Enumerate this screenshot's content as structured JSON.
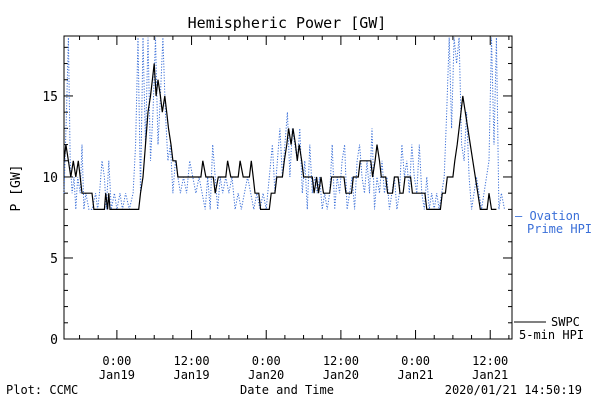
{
  "chart_data": {
    "type": "line",
    "title": "Hemispheric Power [GW]",
    "xlabel": "Date and Time",
    "ylabel": "P [GW]",
    "ylim": [
      0,
      18.7
    ],
    "y_ticks": [
      0,
      5,
      10,
      15
    ],
    "x_range_hours": [
      -8.5,
      63.5
    ],
    "x_ticks": [
      {
        "hour": 0,
        "time": "0:00",
        "date": "Jan19"
      },
      {
        "hour": 12,
        "time": "12:00",
        "date": "Jan19"
      },
      {
        "hour": 24,
        "time": "0:00",
        "date": "Jan20"
      },
      {
        "hour": 36,
        "time": "12:00",
        "date": "Jan20"
      },
      {
        "hour": 48,
        "time": "0:00",
        "date": "Jan21"
      },
      {
        "hour": 60,
        "time": "12:00",
        "date": "Jan21"
      }
    ],
    "legend_placement": "right",
    "series": [
      {
        "name": "SWPC 5-min HPI",
        "color": "#000000",
        "style": "solid",
        "points": [
          [
            -8.5,
            11
          ],
          [
            -8.2,
            12
          ],
          [
            -7.8,
            11
          ],
          [
            -7.4,
            10
          ],
          [
            -7,
            11
          ],
          [
            -6.6,
            10
          ],
          [
            -6.2,
            11
          ],
          [
            -5.9,
            10
          ],
          [
            -5.6,
            9
          ],
          [
            -4,
            9
          ],
          [
            -3.7,
            8
          ],
          [
            -2,
            8
          ],
          [
            -1.8,
            9
          ],
          [
            -1.5,
            8
          ],
          [
            -1.3,
            9
          ],
          [
            -1.1,
            8
          ],
          [
            3.5,
            8
          ],
          [
            3.8,
            9
          ],
          [
            4.2,
            10
          ],
          [
            4.6,
            12
          ],
          [
            5,
            14
          ],
          [
            5.4,
            15
          ],
          [
            5.7,
            16
          ],
          [
            6,
            17
          ],
          [
            6.3,
            15
          ],
          [
            6.6,
            16
          ],
          [
            7,
            15
          ],
          [
            7.3,
            14
          ],
          [
            7.7,
            15
          ],
          [
            8,
            14
          ],
          [
            8.3,
            13
          ],
          [
            8.7,
            12
          ],
          [
            9,
            11
          ],
          [
            9.5,
            11
          ],
          [
            9.8,
            10
          ],
          [
            13.5,
            10
          ],
          [
            13.8,
            11
          ],
          [
            14.3,
            10
          ],
          [
            15.5,
            10
          ],
          [
            15.8,
            9
          ],
          [
            16.3,
            10
          ],
          [
            17.5,
            10
          ],
          [
            17.8,
            11
          ],
          [
            18.3,
            10
          ],
          [
            19.5,
            10
          ],
          [
            19.8,
            11
          ],
          [
            20.3,
            10
          ],
          [
            21.3,
            10
          ],
          [
            21.6,
            11
          ],
          [
            21.9,
            10
          ],
          [
            22.2,
            9
          ],
          [
            22.8,
            9
          ],
          [
            23.1,
            8
          ],
          [
            24.5,
            8
          ],
          [
            24.8,
            9
          ],
          [
            25.4,
            9
          ],
          [
            25.7,
            10
          ],
          [
            26.6,
            10
          ],
          [
            26.9,
            11
          ],
          [
            27.3,
            12
          ],
          [
            27.6,
            13
          ],
          [
            28,
            12
          ],
          [
            28.3,
            13
          ],
          [
            28.7,
            12
          ],
          [
            29,
            11
          ],
          [
            29.3,
            12
          ],
          [
            29.7,
            11
          ],
          [
            30,
            10
          ],
          [
            31.4,
            10
          ],
          [
            31.7,
            9
          ],
          [
            32.1,
            10
          ],
          [
            32.4,
            9
          ],
          [
            32.8,
            10
          ],
          [
            33.2,
            9
          ],
          [
            34.2,
            9
          ],
          [
            34.5,
            10
          ],
          [
            36.5,
            10
          ],
          [
            36.8,
            9
          ],
          [
            37.7,
            9
          ],
          [
            38,
            10
          ],
          [
            38.8,
            10
          ],
          [
            39.1,
            11
          ],
          [
            40.8,
            11
          ],
          [
            41.1,
            10
          ],
          [
            41.5,
            11
          ],
          [
            41.8,
            12
          ],
          [
            42.2,
            11
          ],
          [
            42.5,
            10
          ],
          [
            43.2,
            10
          ],
          [
            43.5,
            9
          ],
          [
            44.3,
            9
          ],
          [
            44.6,
            10
          ],
          [
            45.2,
            10
          ],
          [
            45.5,
            9
          ],
          [
            46,
            9
          ],
          [
            46.3,
            10
          ],
          [
            47.2,
            10
          ],
          [
            47.5,
            9
          ],
          [
            49.5,
            9
          ],
          [
            49.8,
            8
          ],
          [
            52,
            8
          ],
          [
            52.3,
            9
          ],
          [
            52.8,
            9
          ],
          [
            53.1,
            10
          ],
          [
            54,
            10
          ],
          [
            54.3,
            11
          ],
          [
            54.7,
            12
          ],
          [
            55,
            13
          ],
          [
            55.3,
            14
          ],
          [
            55.6,
            15
          ],
          [
            56,
            14
          ],
          [
            56.4,
            13
          ],
          [
            56.8,
            12
          ],
          [
            57.2,
            11
          ],
          [
            57.6,
            10
          ],
          [
            58,
            9
          ],
          [
            58.4,
            8
          ],
          [
            59.5,
            8
          ],
          [
            59.8,
            9
          ],
          [
            60.2,
            8
          ],
          [
            61,
            8
          ]
        ]
      },
      {
        "name": "Ovation Prime HPI",
        "color": "#3a6fd8",
        "style": "dotted",
        "points": [
          [
            -8.5,
            9
          ],
          [
            -8.1,
            14
          ],
          [
            -7.8,
            18.6
          ],
          [
            -7.5,
            11
          ],
          [
            -7.2,
            9
          ],
          [
            -6.9,
            10
          ],
          [
            -6.6,
            8
          ],
          [
            -6.3,
            10
          ],
          [
            -5.9,
            9
          ],
          [
            -5.6,
            12
          ],
          [
            -5.3,
            8
          ],
          [
            -5,
            9
          ],
          [
            -4.5,
            8
          ],
          [
            -4,
            8
          ],
          [
            -3.4,
            9
          ],
          [
            -3.1,
            8
          ],
          [
            -2.8,
            9
          ],
          [
            -2.4,
            11
          ],
          [
            -2,
            10
          ],
          [
            -1.7,
            8
          ],
          [
            -1.3,
            11
          ],
          [
            -0.9,
            8
          ],
          [
            -0.4,
            9
          ],
          [
            0,
            8
          ],
          [
            0.5,
            9
          ],
          [
            0.9,
            8
          ],
          [
            1.4,
            9
          ],
          [
            2,
            8
          ],
          [
            2.6,
            9
          ],
          [
            3,
            12
          ],
          [
            3.4,
            18.6
          ],
          [
            3.8,
            9
          ],
          [
            4.2,
            18.6
          ],
          [
            4.6,
            12
          ],
          [
            5,
            18.6
          ],
          [
            5.4,
            11
          ],
          [
            5.8,
            14
          ],
          [
            6.2,
            18.6
          ],
          [
            6.6,
            12
          ],
          [
            7,
            15
          ],
          [
            7.4,
            18.6
          ],
          [
            7.8,
            14
          ],
          [
            8.2,
            11
          ],
          [
            8.6,
            12
          ],
          [
            9,
            9
          ],
          [
            9.4,
            11
          ],
          [
            9.8,
            10
          ],
          [
            10.2,
            9
          ],
          [
            10.7,
            10
          ],
          [
            11.2,
            9
          ],
          [
            11.7,
            11
          ],
          [
            12.2,
            10
          ],
          [
            12.7,
            9
          ],
          [
            13.2,
            10
          ],
          [
            13.7,
            9
          ],
          [
            14.2,
            8
          ],
          [
            14.6,
            10
          ],
          [
            15,
            8
          ],
          [
            15.4,
            12
          ],
          [
            15.8,
            10
          ],
          [
            16.2,
            8
          ],
          [
            16.6,
            10
          ],
          [
            17,
            9
          ],
          [
            17.5,
            10
          ],
          [
            18,
            9
          ],
          [
            18.5,
            10
          ],
          [
            19,
            8
          ],
          [
            19.5,
            9
          ],
          [
            20,
            8
          ],
          [
            20.5,
            9
          ],
          [
            21,
            10
          ],
          [
            21.5,
            9
          ],
          [
            22,
            8
          ],
          [
            22.5,
            9
          ],
          [
            23,
            8
          ],
          [
            23.5,
            9
          ],
          [
            24,
            8
          ],
          [
            24.5,
            10
          ],
          [
            25,
            12
          ],
          [
            25.4,
            9
          ],
          [
            25.8,
            11
          ],
          [
            26.2,
            13
          ],
          [
            26.6,
            10
          ],
          [
            27,
            12
          ],
          [
            27.4,
            14
          ],
          [
            27.8,
            10
          ],
          [
            28.2,
            13
          ],
          [
            28.6,
            12
          ],
          [
            29,
            11
          ],
          [
            29.4,
            13
          ],
          [
            29.8,
            9
          ],
          [
            30.2,
            11
          ],
          [
            30.6,
            8
          ],
          [
            31,
            12
          ],
          [
            31.4,
            9
          ],
          [
            31.8,
            10
          ],
          [
            32.2,
            9
          ],
          [
            32.6,
            10
          ],
          [
            33,
            8
          ],
          [
            33.4,
            9
          ],
          [
            33.8,
            8
          ],
          [
            34.2,
            9
          ],
          [
            34.6,
            12
          ],
          [
            35,
            8
          ],
          [
            35.4,
            10
          ],
          [
            35.8,
            9
          ],
          [
            36.2,
            11
          ],
          [
            36.6,
            12
          ],
          [
            37,
            8
          ],
          [
            37.4,
            9
          ],
          [
            37.8,
            10
          ],
          [
            38.2,
            8
          ],
          [
            38.6,
            11
          ],
          [
            39,
            12
          ],
          [
            39.4,
            10
          ],
          [
            39.8,
            9
          ],
          [
            40.2,
            11
          ],
          [
            40.6,
            9
          ],
          [
            41,
            13
          ],
          [
            41.4,
            8
          ],
          [
            41.8,
            10
          ],
          [
            42.2,
            9
          ],
          [
            42.6,
            11
          ],
          [
            43,
            9
          ],
          [
            43.4,
            10
          ],
          [
            43.8,
            8
          ],
          [
            44.2,
            9
          ],
          [
            44.6,
            10
          ],
          [
            45,
            8
          ],
          [
            45.4,
            9
          ],
          [
            45.8,
            12
          ],
          [
            46.2,
            10
          ],
          [
            46.6,
            11
          ],
          [
            47,
            9
          ],
          [
            47.4,
            12
          ],
          [
            47.8,
            10
          ],
          [
            48.2,
            9
          ],
          [
            48.6,
            12
          ],
          [
            49,
            9
          ],
          [
            49.4,
            8
          ],
          [
            49.8,
            10
          ],
          [
            50.2,
            8
          ],
          [
            50.6,
            9
          ],
          [
            51,
            8
          ],
          [
            51.4,
            9
          ],
          [
            51.8,
            8
          ],
          [
            52.2,
            9
          ],
          [
            52.6,
            10
          ],
          [
            53,
            14
          ],
          [
            53.4,
            18.6
          ],
          [
            53.8,
            13
          ],
          [
            54.2,
            18.6
          ],
          [
            54.6,
            17
          ],
          [
            55,
            18.6
          ],
          [
            55.4,
            12
          ],
          [
            55.8,
            11
          ],
          [
            56.2,
            14
          ],
          [
            56.6,
            10
          ],
          [
            57,
            8
          ],
          [
            57.4,
            9
          ],
          [
            57.8,
            10
          ],
          [
            58.2,
            9
          ],
          [
            58.6,
            8
          ],
          [
            59,
            9
          ],
          [
            59.4,
            10
          ],
          [
            59.8,
            11
          ],
          [
            60.2,
            18.6
          ],
          [
            60.6,
            12
          ],
          [
            61,
            18.6
          ],
          [
            61.4,
            8
          ],
          [
            61.8,
            9
          ],
          [
            62.3,
            8
          ]
        ]
      }
    ]
  },
  "legend": {
    "ovation": {
      "line1": "— Ovation",
      "line2": "Prime HPI"
    },
    "swpc": {
      "line1": "SWPC",
      "line2": "5-min HPI"
    }
  },
  "footer": {
    "left": "Plot: CCMC",
    "center": "Date and Time",
    "right": "2020/01/21 14:50:19"
  }
}
